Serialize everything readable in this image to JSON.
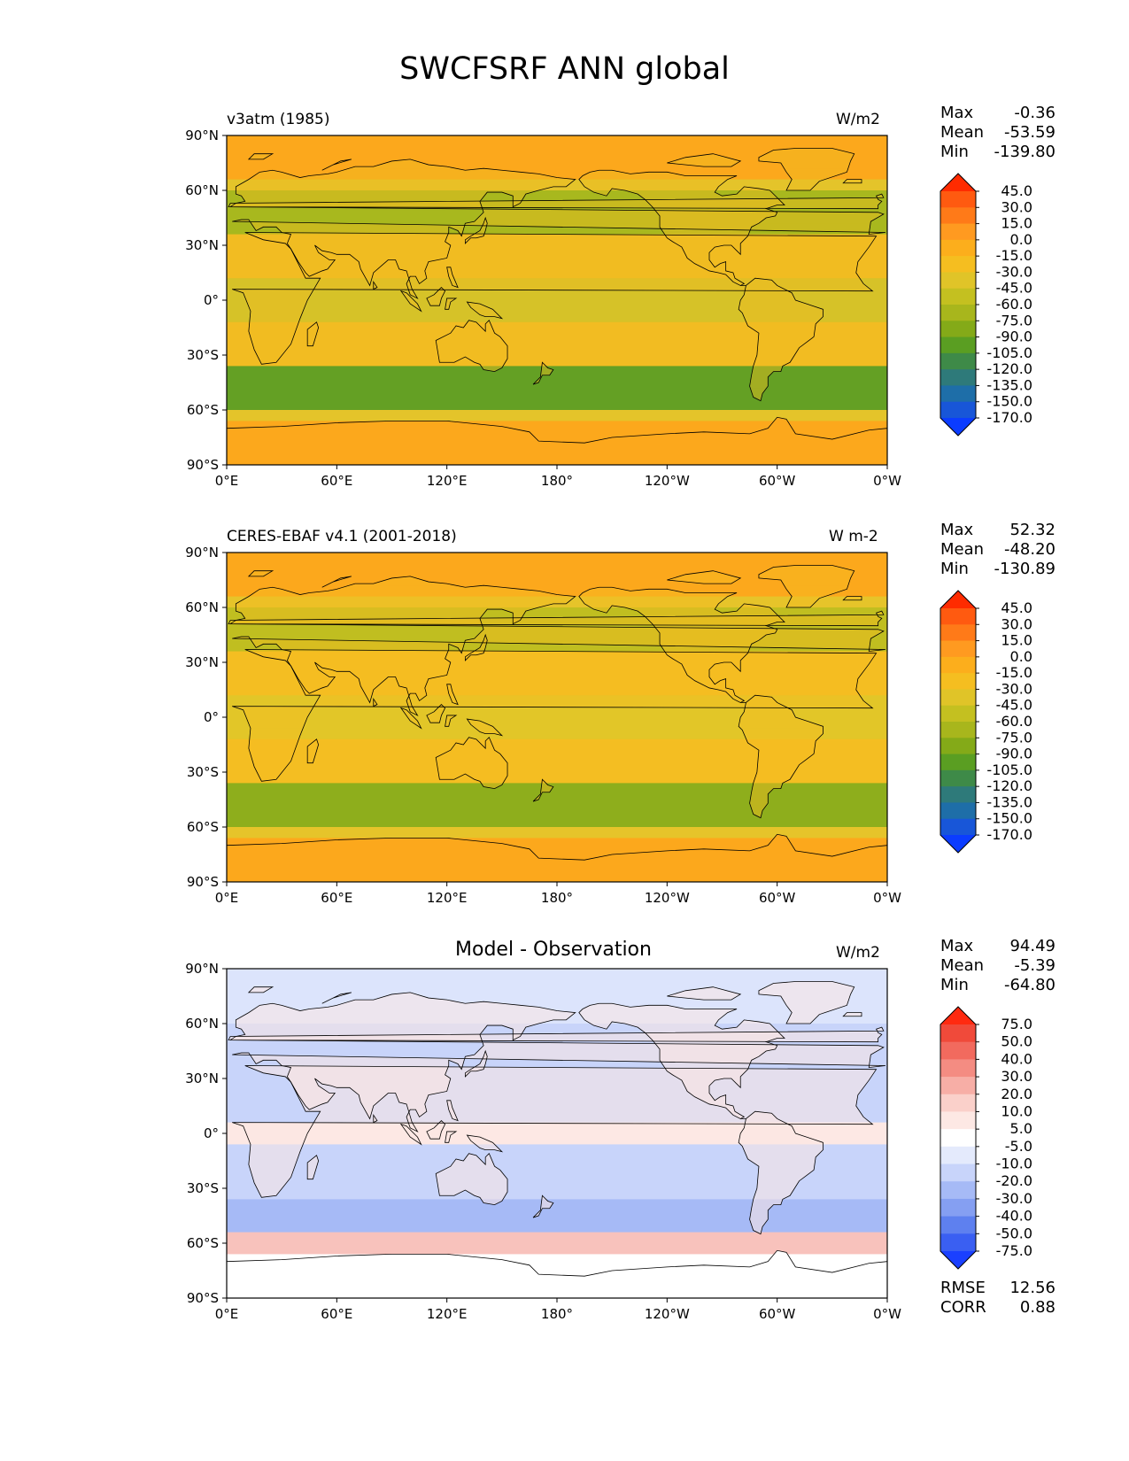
{
  "figure_title": "SWCFSRF ANN global",
  "lat_ticks": [
    "90°N",
    "60°N",
    "30°N",
    "0°",
    "30°S",
    "60°S",
    "90°S"
  ],
  "lon_ticks": [
    "0°E",
    "60°E",
    "120°E",
    "180°",
    "120°W",
    "60°W",
    "0°W"
  ],
  "panels": [
    {
      "left_title": "v3atm (1985)",
      "center_title": "",
      "units": "W/m2",
      "stats": {
        "max_label": "Max",
        "max": "-0.36",
        "mean_label": "Mean",
        "mean": "-53.59",
        "min_label": "Min",
        "min": "-139.80"
      },
      "colorbar_levels": [
        "45.0",
        "30.0",
        "15.0",
        "0.0",
        "-15.0",
        "-30.0",
        "-45.0",
        "-60.0",
        "-75.0",
        "-90.0",
        "-105.0",
        "-120.0",
        "-135.0",
        "-150.0",
        "-170.0"
      ],
      "colorbar_colors": [
        "#ff2b00",
        "#ff5a10",
        "#ff7a18",
        "#ff9a20",
        "#fcae1c",
        "#f5be20",
        "#e0c428",
        "#c4c020",
        "#a8b61c",
        "#84aa18",
        "#5a9e22",
        "#3e8a48",
        "#2e7a7a",
        "#1e6ea8",
        "#1856d8",
        "#0b3cff"
      ]
    },
    {
      "left_title": "CERES-EBAF v4.1 (2001-2018)",
      "center_title": "",
      "units": "W m-2",
      "stats": {
        "max_label": "Max",
        "max": "52.32",
        "mean_label": "Mean",
        "mean": "-48.20",
        "min_label": "Min",
        "min": "-130.89"
      },
      "colorbar_levels": [
        "45.0",
        "30.0",
        "15.0",
        "0.0",
        "-15.0",
        "-30.0",
        "-45.0",
        "-60.0",
        "-75.0",
        "-90.0",
        "-105.0",
        "-120.0",
        "-135.0",
        "-150.0",
        "-170.0"
      ],
      "colorbar_colors": [
        "#ff2b00",
        "#ff5a10",
        "#ff7a18",
        "#ff9a20",
        "#fcae1c",
        "#f5be20",
        "#e0c428",
        "#c4c020",
        "#a8b61c",
        "#84aa18",
        "#5a9e22",
        "#3e8a48",
        "#2e7a7a",
        "#1e6ea8",
        "#1856d8",
        "#0b3cff"
      ]
    },
    {
      "left_title": "",
      "center_title": "Model - Observation",
      "units": "W/m2",
      "stats": {
        "max_label": "Max",
        "max": "94.49",
        "mean_label": "Mean",
        "mean": "-5.39",
        "min_label": "Min",
        "min": "-64.80"
      },
      "colorbar_levels": [
        "75.0",
        "50.0",
        "40.0",
        "30.0",
        "20.0",
        "10.0",
        "5.0",
        "-5.0",
        "-10.0",
        "-20.0",
        "-30.0",
        "-40.0",
        "-50.0",
        "-75.0"
      ],
      "colorbar_colors": [
        "#ff2a10",
        "#f04a3a",
        "#f26a5e",
        "#f48c82",
        "#f7aea6",
        "#fad0ca",
        "#fde8e4",
        "#ffffff",
        "#e4eafc",
        "#c8d4fa",
        "#a6baf6",
        "#859ff2",
        "#5e80ef",
        "#3a5ff2",
        "#1a40ff"
      ],
      "rmse_label": "RMSE",
      "rmse": "12.56",
      "corr_label": "CORR",
      "corr": "0.88"
    }
  ]
}
